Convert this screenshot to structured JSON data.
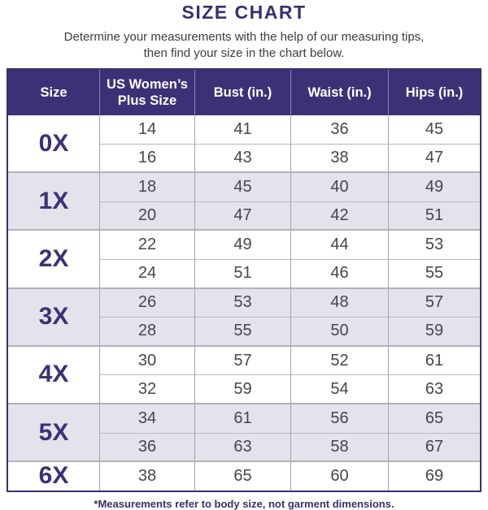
{
  "title": "SIZE CHART",
  "subtitle_line1": "Determine your measurements with the help of our measuring tips,",
  "subtitle_line2": "then find your size in the chart below.",
  "footnote": "*Measurements refer to body size, not garment dimensions.",
  "colors": {
    "header_bg": "#3b3177",
    "title_text": "#38306e",
    "row_alt_bg": "#e4e2eb",
    "body_text": "#47454b",
    "divider": "#a5a3ac"
  },
  "table": {
    "headers": [
      "Size",
      "US Women’s Plus Size",
      "Bust (in.)",
      "Waist (in.)",
      "Hips (in.)"
    ],
    "groups": [
      {
        "size": "0X",
        "rows": [
          [
            "14",
            "41",
            "36",
            "45"
          ],
          [
            "16",
            "43",
            "38",
            "47"
          ]
        ]
      },
      {
        "size": "1X",
        "rows": [
          [
            "18",
            "45",
            "40",
            "49"
          ],
          [
            "20",
            "47",
            "42",
            "51"
          ]
        ]
      },
      {
        "size": "2X",
        "rows": [
          [
            "22",
            "49",
            "44",
            "53"
          ],
          [
            "24",
            "51",
            "46",
            "55"
          ]
        ]
      },
      {
        "size": "3X",
        "rows": [
          [
            "26",
            "53",
            "48",
            "57"
          ],
          [
            "28",
            "55",
            "50",
            "59"
          ]
        ]
      },
      {
        "size": "4X",
        "rows": [
          [
            "30",
            "57",
            "52",
            "61"
          ],
          [
            "32",
            "59",
            "54",
            "63"
          ]
        ]
      },
      {
        "size": "5X",
        "rows": [
          [
            "34",
            "61",
            "56",
            "65"
          ],
          [
            "36",
            "63",
            "58",
            "67"
          ]
        ]
      },
      {
        "size": "6X",
        "rows": [
          [
            "38",
            "65",
            "60",
            "69"
          ]
        ]
      }
    ]
  },
  "chart_data": {
    "type": "table",
    "title": "SIZE CHART",
    "columns": [
      "Size",
      "US Women’s Plus Size",
      "Bust (in.)",
      "Waist (in.)",
      "Hips (in.)"
    ],
    "rows": [
      [
        "0X",
        "14",
        "41",
        "36",
        "45"
      ],
      [
        "0X",
        "16",
        "43",
        "38",
        "47"
      ],
      [
        "1X",
        "18",
        "45",
        "40",
        "49"
      ],
      [
        "1X",
        "20",
        "47",
        "42",
        "51"
      ],
      [
        "2X",
        "22",
        "49",
        "44",
        "53"
      ],
      [
        "2X",
        "24",
        "51",
        "46",
        "55"
      ],
      [
        "3X",
        "26",
        "53",
        "48",
        "57"
      ],
      [
        "3X",
        "28",
        "55",
        "50",
        "59"
      ],
      [
        "4X",
        "30",
        "57",
        "52",
        "61"
      ],
      [
        "4X",
        "32",
        "59",
        "54",
        "63"
      ],
      [
        "5X",
        "34",
        "61",
        "56",
        "65"
      ],
      [
        "5X",
        "36",
        "63",
        "58",
        "67"
      ],
      [
        "6X",
        "38",
        "65",
        "60",
        "69"
      ]
    ]
  }
}
